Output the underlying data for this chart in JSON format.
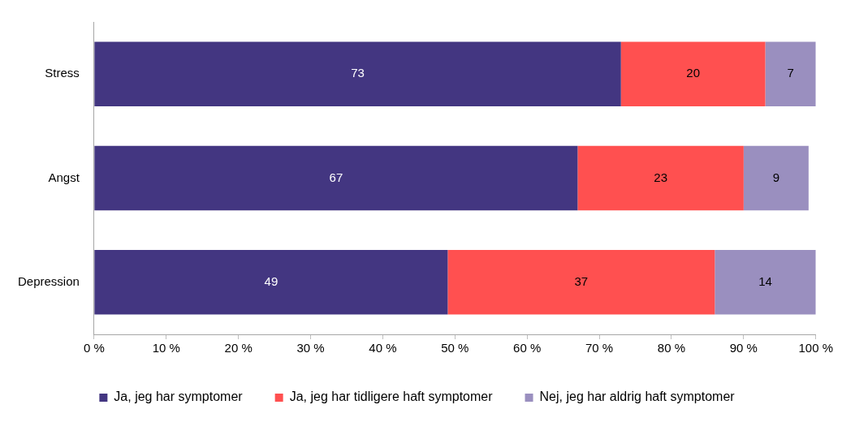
{
  "chart_data": {
    "type": "bar",
    "orientation": "horizontal",
    "stacked": true,
    "categories": [
      "Stress",
      "Angst",
      "Depression"
    ],
    "series": [
      {
        "name": "Ja, jeg har symptomer",
        "color": "#433681",
        "values": [
          73,
          67,
          49
        ]
      },
      {
        "name": "Ja, jeg har tidligere haft symptomer",
        "color": "#ff5050",
        "values": [
          20,
          23,
          37
        ]
      },
      {
        "name": "Nej, jeg har aldrig haft symptomer",
        "color": "#9a8fbf",
        "values": [
          7,
          9,
          14
        ]
      }
    ],
    "xlim": [
      0,
      100
    ],
    "xticks": [
      {
        "value": 0,
        "label": "0 %"
      },
      {
        "value": 10,
        "label": "10 %"
      },
      {
        "value": 20,
        "label": "20 %"
      },
      {
        "value": 30,
        "label": "30 %"
      },
      {
        "value": 40,
        "label": "40 %"
      },
      {
        "value": 50,
        "label": "50 %"
      },
      {
        "value": 60,
        "label": "60 %"
      },
      {
        "value": 70,
        "label": "70 %"
      },
      {
        "value": 80,
        "label": "80 %"
      },
      {
        "value": 90,
        "label": "90 %"
      },
      {
        "value": 100,
        "label": "100 %"
      }
    ],
    "grid": false,
    "legend": "bottom",
    "data_labels": true
  }
}
